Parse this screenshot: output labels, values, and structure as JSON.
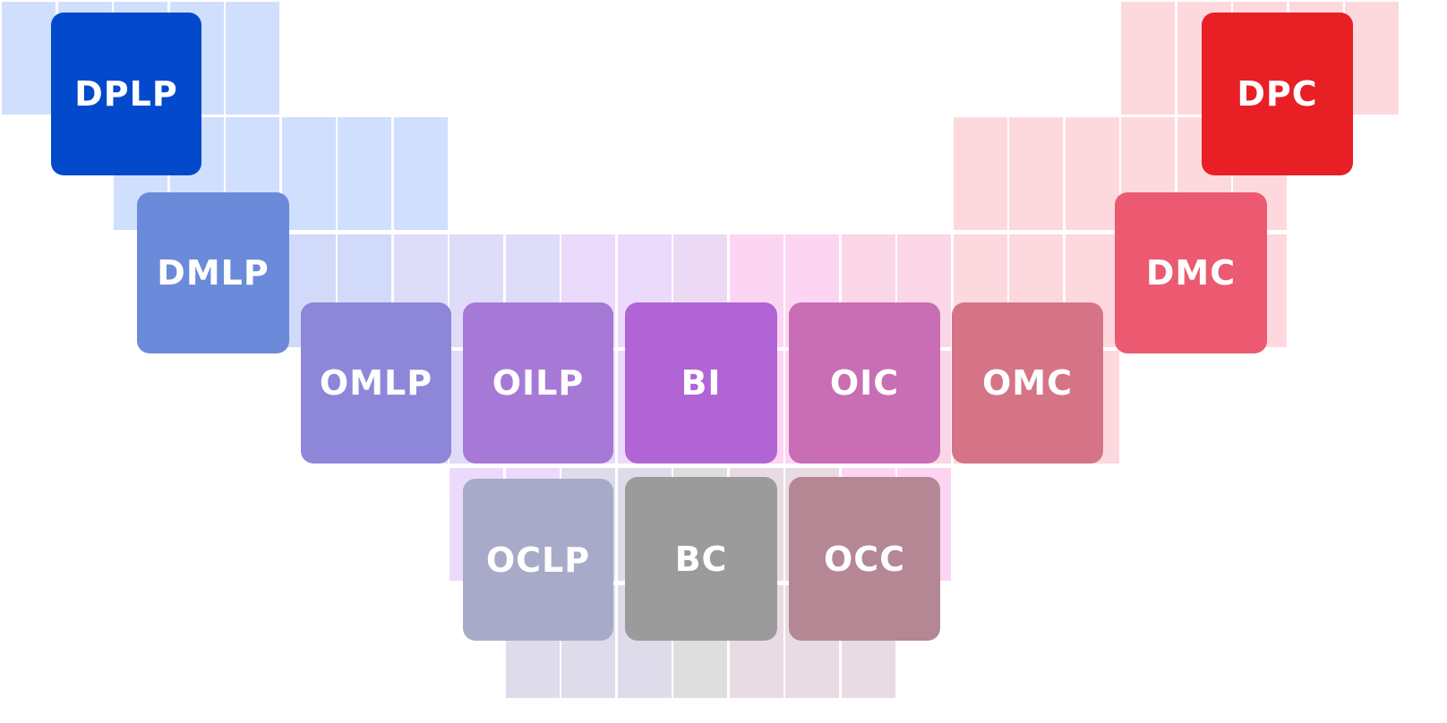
{
  "cards": [
    {
      "label": "DPLP",
      "color": "#0349cc"
    },
    {
      "label": "DMLP",
      "color": "#6b8ad9"
    },
    {
      "label": "OMLP",
      "color": "#8e86d9"
    },
    {
      "label": "OILP",
      "color": "#a679d7"
    },
    {
      "label": "BI",
      "color": "#b064d6"
    },
    {
      "label": "OIC",
      "color": "#c96db4"
    },
    {
      "label": "OMC",
      "color": "#d57486"
    },
    {
      "label": "DMC",
      "color": "#eb5a70"
    },
    {
      "label": "DPC",
      "color": "#e81f25"
    },
    {
      "label": "OCLP",
      "color": "#a7aac9"
    },
    {
      "label": "BC",
      "color": "#9b9b9b"
    },
    {
      "label": "OCC",
      "color": "#b58694"
    }
  ],
  "tile_colors": {
    "blue": "#d0dffe",
    "red": "#fdd9de"
  }
}
